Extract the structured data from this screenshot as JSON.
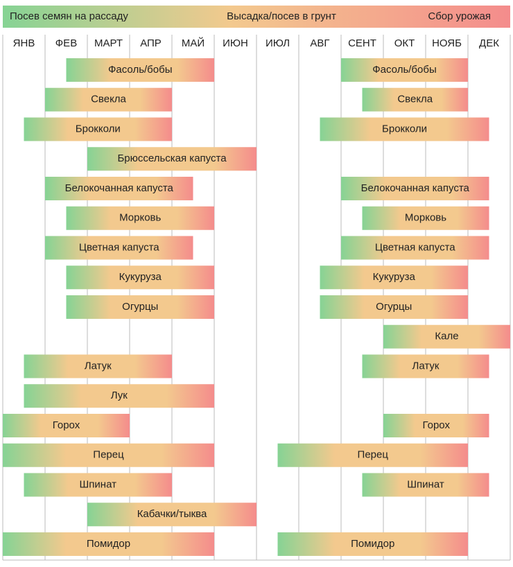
{
  "chart_data": {
    "type": "gantt",
    "legend": [
      "Посев семян на рассаду",
      "Высадка/посев в грунт",
      "Сбор урожая"
    ],
    "categories": [
      "ЯНВ",
      "ФЕВ",
      "МАРТ",
      "АПР",
      "МАЙ",
      "ИЮН",
      "ИЮЛ",
      "АВГ",
      "СЕНТ",
      "ОКТ",
      "НОЯБ",
      "ДЕК"
    ],
    "xlim": [
      0,
      12
    ],
    "xticks": [
      0,
      1,
      2,
      3,
      4,
      5,
      6,
      7,
      8,
      9,
      10,
      11,
      12
    ],
    "grid": true,
    "colors": [
      "#86d394",
      "#f3c98e",
      "#f48c8c"
    ],
    "rows": [
      {
        "name": "Фасоль/бобы",
        "bars": [
          [
            1.5,
            5
          ],
          [
            8,
            11
          ]
        ]
      },
      {
        "name": "Свекла",
        "bars": [
          [
            1,
            4
          ],
          [
            8.5,
            11
          ]
        ]
      },
      {
        "name": "Брокколи",
        "bars": [
          [
            0.5,
            4
          ],
          [
            7.5,
            11.5
          ]
        ]
      },
      {
        "name": "Брюссельская капуста",
        "bars": [
          [
            2,
            6
          ]
        ]
      },
      {
        "name": "Белокочанная капуста",
        "bars": [
          [
            1,
            4.5
          ],
          [
            8,
            11.5
          ]
        ]
      },
      {
        "name": "Морковь",
        "bars": [
          [
            1.5,
            5
          ],
          [
            8.5,
            11.5
          ]
        ]
      },
      {
        "name": "Цветная капуста",
        "bars": [
          [
            1,
            4.5
          ],
          [
            8,
            11.5
          ]
        ]
      },
      {
        "name": "Кукуруза",
        "bars": [
          [
            1.5,
            5
          ],
          [
            7.5,
            11
          ]
        ]
      },
      {
        "name": "Огурцы",
        "bars": [
          [
            1.5,
            5
          ],
          [
            7.5,
            11
          ]
        ]
      },
      {
        "name": "Кале",
        "bars": [
          [
            9,
            12
          ]
        ]
      },
      {
        "name": "Латук",
        "bars": [
          [
            0.5,
            4
          ],
          [
            8.5,
            11.5
          ]
        ]
      },
      {
        "name": "Лук",
        "bars": [
          [
            0.5,
            5
          ]
        ]
      },
      {
        "name": "Горох",
        "bars": [
          [
            0,
            3
          ],
          [
            9,
            11.5
          ]
        ]
      },
      {
        "name": "Перец",
        "bars": [
          [
            0,
            5
          ],
          [
            6.5,
            11
          ]
        ]
      },
      {
        "name": "Шпинат",
        "bars": [
          [
            0.5,
            4
          ],
          [
            8.5,
            11.5
          ]
        ]
      },
      {
        "name": "Кабачки/тыква",
        "bars": [
          [
            2,
            6
          ]
        ]
      },
      {
        "name": "Помидор",
        "bars": [
          [
            0,
            5
          ],
          [
            6.5,
            11
          ]
        ]
      }
    ]
  }
}
